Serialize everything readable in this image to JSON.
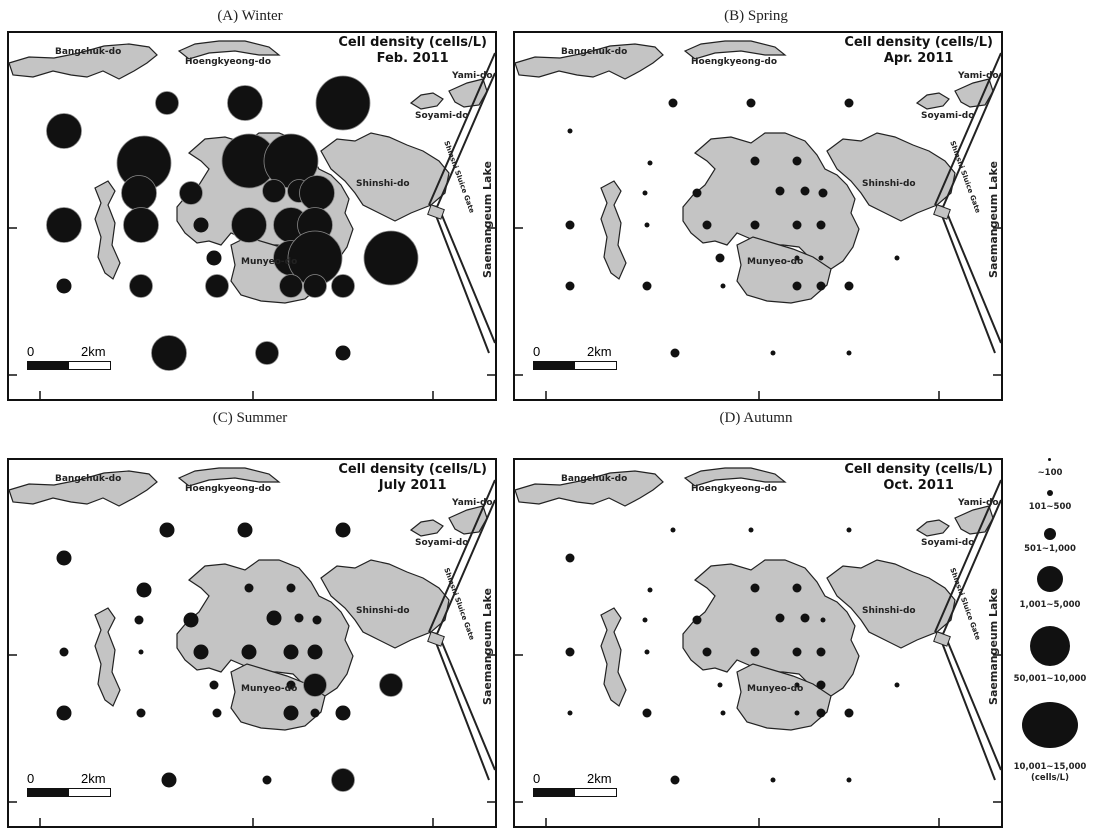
{
  "panels": [
    {
      "caption": "(A) Winter",
      "title": "Cell density (cells/L)",
      "date": "Feb. 2011",
      "sizes": [
        4,
        5,
        6,
        5,
        6,
        6,
        6,
        5,
        4,
        4,
        4,
        5,
        5,
        5,
        3,
        5,
        5,
        5,
        3,
        5,
        6,
        6,
        3,
        4,
        4,
        4,
        4,
        4,
        5,
        4,
        3
      ]
    },
    {
      "caption": "(B) Spring",
      "title": "Cell density (cells/L)",
      "date": "Apr. 2011",
      "sizes": [
        2,
        2,
        2,
        1,
        1,
        2,
        2,
        1,
        2,
        2,
        2,
        2,
        2,
        1,
        2,
        2,
        2,
        2,
        2,
        1,
        1,
        1,
        2,
        2,
        1,
        2,
        2,
        2,
        2,
        1,
        1
      ]
    },
    {
      "caption": "(C) Summer",
      "title": "Cell density (cells/L)",
      "date": "July 2011",
      "sizes": [
        3,
        3,
        3,
        3,
        3,
        2,
        2,
        2,
        3,
        3,
        2,
        2,
        2,
        1,
        3,
        3,
        3,
        3,
        2,
        2,
        4,
        4,
        3,
        2,
        2,
        3,
        2,
        3,
        3,
        2,
        4
      ]
    },
    {
      "caption": "(D) Autumn",
      "title": "Cell density (cells/L)",
      "date": "Oct. 2011",
      "sizes": [
        1,
        1,
        1,
        2,
        1,
        2,
        2,
        1,
        2,
        2,
        2,
        1,
        2,
        1,
        2,
        2,
        2,
        2,
        1,
        1,
        2,
        1,
        1,
        2,
        1,
        1,
        2,
        2,
        2,
        1,
        1
      ]
    }
  ],
  "places": {
    "bangchuk": "Bangchuk-do",
    "hoengkyeong": "Hoengkyeong-do",
    "yami": "Yami-do",
    "soyami": "Soyami-do",
    "shinshi": "Shinshi-do",
    "munyeo": "Munyeo-do",
    "sluice": "Shinshi Sluice Gate",
    "lake": "Saemangeum Lake"
  },
  "scale": {
    "zero": "0",
    "distance": "2km"
  },
  "legend": {
    "items": [
      {
        "label": "~100"
      },
      {
        "label": "101~500"
      },
      {
        "label": "501~1,000"
      },
      {
        "label": "1,001~5,000"
      },
      {
        "label": "50,001~10,000"
      },
      {
        "label": "10,001~15,000"
      }
    ],
    "unit": "(cells/L)"
  }
}
